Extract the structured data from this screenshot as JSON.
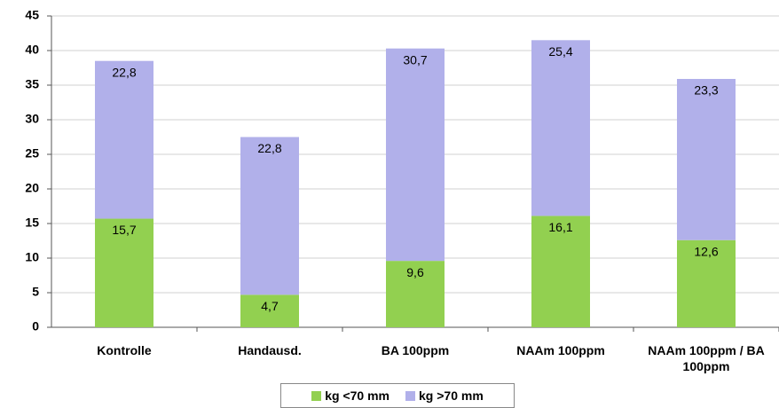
{
  "chart_data": {
    "type": "stacked_bar",
    "categories": [
      "Kontrolle",
      "Handausd.",
      "BA 100ppm",
      "NAAm 100ppm",
      "NAAm 100ppm / BA 100ppm"
    ],
    "series": [
      {
        "name": "kg <70 mm",
        "color": "#92d050",
        "values": [
          15.7,
          4.7,
          9.6,
          16.1,
          12.6
        ],
        "value_labels": [
          "15,7",
          "4,7",
          "9,6",
          "16,1",
          "12,6"
        ]
      },
      {
        "name": "kg >70 mm",
        "color": "#b1b0ea",
        "values": [
          22.8,
          22.8,
          30.7,
          25.4,
          23.3
        ],
        "value_labels": [
          "22,8",
          "22,8",
          "30,7",
          "25,4",
          "23,3"
        ]
      }
    ],
    "ylim": [
      0,
      45
    ],
    "yticks": [
      0,
      5,
      10,
      15,
      20,
      25,
      30,
      35,
      40,
      45
    ],
    "grid": true,
    "legend": "bottom"
  }
}
